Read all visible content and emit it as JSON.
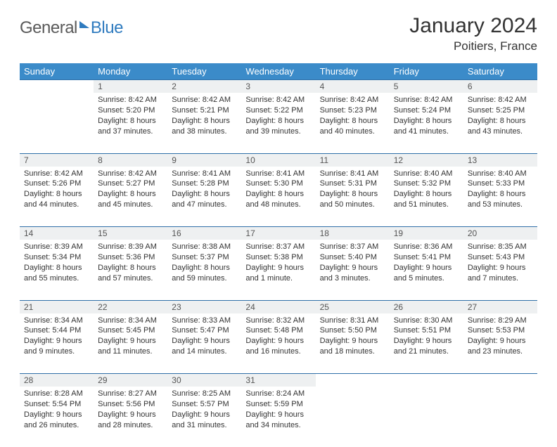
{
  "logo": {
    "part1": "General",
    "part2": "Blue"
  },
  "title": "January 2024",
  "location": "Poitiers, France",
  "colors": {
    "header_bg": "#3b8bc9",
    "header_text": "#ffffff",
    "daynum_bg": "#eef0f1",
    "row_border": "#2f6fa8",
    "logo_accent": "#2f7bbf",
    "body_text": "#333333"
  },
  "day_headers": [
    "Sunday",
    "Monday",
    "Tuesday",
    "Wednesday",
    "Thursday",
    "Friday",
    "Saturday"
  ],
  "weeks": [
    {
      "nums": [
        "",
        "1",
        "2",
        "3",
        "4",
        "5",
        "6"
      ],
      "cells": [
        "",
        "Sunrise: 8:42 AM\nSunset: 5:20 PM\nDaylight: 8 hours and 37 minutes.",
        "Sunrise: 8:42 AM\nSunset: 5:21 PM\nDaylight: 8 hours and 38 minutes.",
        "Sunrise: 8:42 AM\nSunset: 5:22 PM\nDaylight: 8 hours and 39 minutes.",
        "Sunrise: 8:42 AM\nSunset: 5:23 PM\nDaylight: 8 hours and 40 minutes.",
        "Sunrise: 8:42 AM\nSunset: 5:24 PM\nDaylight: 8 hours and 41 minutes.",
        "Sunrise: 8:42 AM\nSunset: 5:25 PM\nDaylight: 8 hours and 43 minutes."
      ]
    },
    {
      "nums": [
        "7",
        "8",
        "9",
        "10",
        "11",
        "12",
        "13"
      ],
      "cells": [
        "Sunrise: 8:42 AM\nSunset: 5:26 PM\nDaylight: 8 hours and 44 minutes.",
        "Sunrise: 8:42 AM\nSunset: 5:27 PM\nDaylight: 8 hours and 45 minutes.",
        "Sunrise: 8:41 AM\nSunset: 5:28 PM\nDaylight: 8 hours and 47 minutes.",
        "Sunrise: 8:41 AM\nSunset: 5:30 PM\nDaylight: 8 hours and 48 minutes.",
        "Sunrise: 8:41 AM\nSunset: 5:31 PM\nDaylight: 8 hours and 50 minutes.",
        "Sunrise: 8:40 AM\nSunset: 5:32 PM\nDaylight: 8 hours and 51 minutes.",
        "Sunrise: 8:40 AM\nSunset: 5:33 PM\nDaylight: 8 hours and 53 minutes."
      ]
    },
    {
      "nums": [
        "14",
        "15",
        "16",
        "17",
        "18",
        "19",
        "20"
      ],
      "cells": [
        "Sunrise: 8:39 AM\nSunset: 5:34 PM\nDaylight: 8 hours and 55 minutes.",
        "Sunrise: 8:39 AM\nSunset: 5:36 PM\nDaylight: 8 hours and 57 minutes.",
        "Sunrise: 8:38 AM\nSunset: 5:37 PM\nDaylight: 8 hours and 59 minutes.",
        "Sunrise: 8:37 AM\nSunset: 5:38 PM\nDaylight: 9 hours and 1 minute.",
        "Sunrise: 8:37 AM\nSunset: 5:40 PM\nDaylight: 9 hours and 3 minutes.",
        "Sunrise: 8:36 AM\nSunset: 5:41 PM\nDaylight: 9 hours and 5 minutes.",
        "Sunrise: 8:35 AM\nSunset: 5:43 PM\nDaylight: 9 hours and 7 minutes."
      ]
    },
    {
      "nums": [
        "21",
        "22",
        "23",
        "24",
        "25",
        "26",
        "27"
      ],
      "cells": [
        "Sunrise: 8:34 AM\nSunset: 5:44 PM\nDaylight: 9 hours and 9 minutes.",
        "Sunrise: 8:34 AM\nSunset: 5:45 PM\nDaylight: 9 hours and 11 minutes.",
        "Sunrise: 8:33 AM\nSunset: 5:47 PM\nDaylight: 9 hours and 14 minutes.",
        "Sunrise: 8:32 AM\nSunset: 5:48 PM\nDaylight: 9 hours and 16 minutes.",
        "Sunrise: 8:31 AM\nSunset: 5:50 PM\nDaylight: 9 hours and 18 minutes.",
        "Sunrise: 8:30 AM\nSunset: 5:51 PM\nDaylight: 9 hours and 21 minutes.",
        "Sunrise: 8:29 AM\nSunset: 5:53 PM\nDaylight: 9 hours and 23 minutes."
      ]
    },
    {
      "nums": [
        "28",
        "29",
        "30",
        "31",
        "",
        "",
        ""
      ],
      "cells": [
        "Sunrise: 8:28 AM\nSunset: 5:54 PM\nDaylight: 9 hours and 26 minutes.",
        "Sunrise: 8:27 AM\nSunset: 5:56 PM\nDaylight: 9 hours and 28 minutes.",
        "Sunrise: 8:25 AM\nSunset: 5:57 PM\nDaylight: 9 hours and 31 minutes.",
        "Sunrise: 8:24 AM\nSunset: 5:59 PM\nDaylight: 9 hours and 34 minutes.",
        "",
        "",
        ""
      ]
    }
  ]
}
